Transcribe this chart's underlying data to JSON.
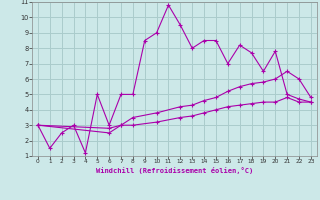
{
  "xlabel": "Windchill (Refroidissement éolien,°C)",
  "xlim": [
    -0.5,
    23.5
  ],
  "ylim": [
    1,
    11
  ],
  "xticks": [
    0,
    1,
    2,
    3,
    4,
    5,
    6,
    7,
    8,
    9,
    10,
    11,
    12,
    13,
    14,
    15,
    16,
    17,
    18,
    19,
    20,
    21,
    22,
    23
  ],
  "yticks": [
    1,
    2,
    3,
    4,
    5,
    6,
    7,
    8,
    9,
    10,
    11
  ],
  "bg_color": "#cce8e8",
  "line_color": "#aa00aa",
  "grid_color": "#aacccc",
  "line1_x": [
    0,
    1,
    2,
    3,
    4,
    5,
    6,
    7,
    8,
    9,
    10,
    11,
    12,
    13,
    14,
    15,
    16,
    17,
    18,
    19,
    20,
    21,
    22,
    23
  ],
  "line1_y": [
    3.0,
    1.5,
    2.5,
    3.0,
    1.2,
    5.0,
    3.0,
    5.0,
    5.0,
    8.5,
    9.0,
    10.8,
    9.5,
    8.0,
    8.5,
    8.5,
    7.0,
    8.2,
    7.7,
    6.5,
    7.8,
    5.0,
    4.7,
    4.5
  ],
  "line2_x": [
    0,
    6,
    7,
    8,
    10,
    12,
    13,
    14,
    15,
    16,
    17,
    18,
    19,
    20,
    21,
    22,
    23
  ],
  "line2_y": [
    3.0,
    2.8,
    3.0,
    3.5,
    3.8,
    4.2,
    4.3,
    4.6,
    4.8,
    5.2,
    5.5,
    5.7,
    5.8,
    6.0,
    6.5,
    6.0,
    4.8
  ],
  "line3_x": [
    0,
    6,
    7,
    8,
    10,
    12,
    13,
    14,
    15,
    16,
    17,
    18,
    19,
    20,
    21,
    22,
    23
  ],
  "line3_y": [
    3.0,
    2.5,
    3.0,
    3.0,
    3.2,
    3.5,
    3.6,
    3.8,
    4.0,
    4.2,
    4.3,
    4.4,
    4.5,
    4.5,
    4.8,
    4.5,
    4.5
  ]
}
